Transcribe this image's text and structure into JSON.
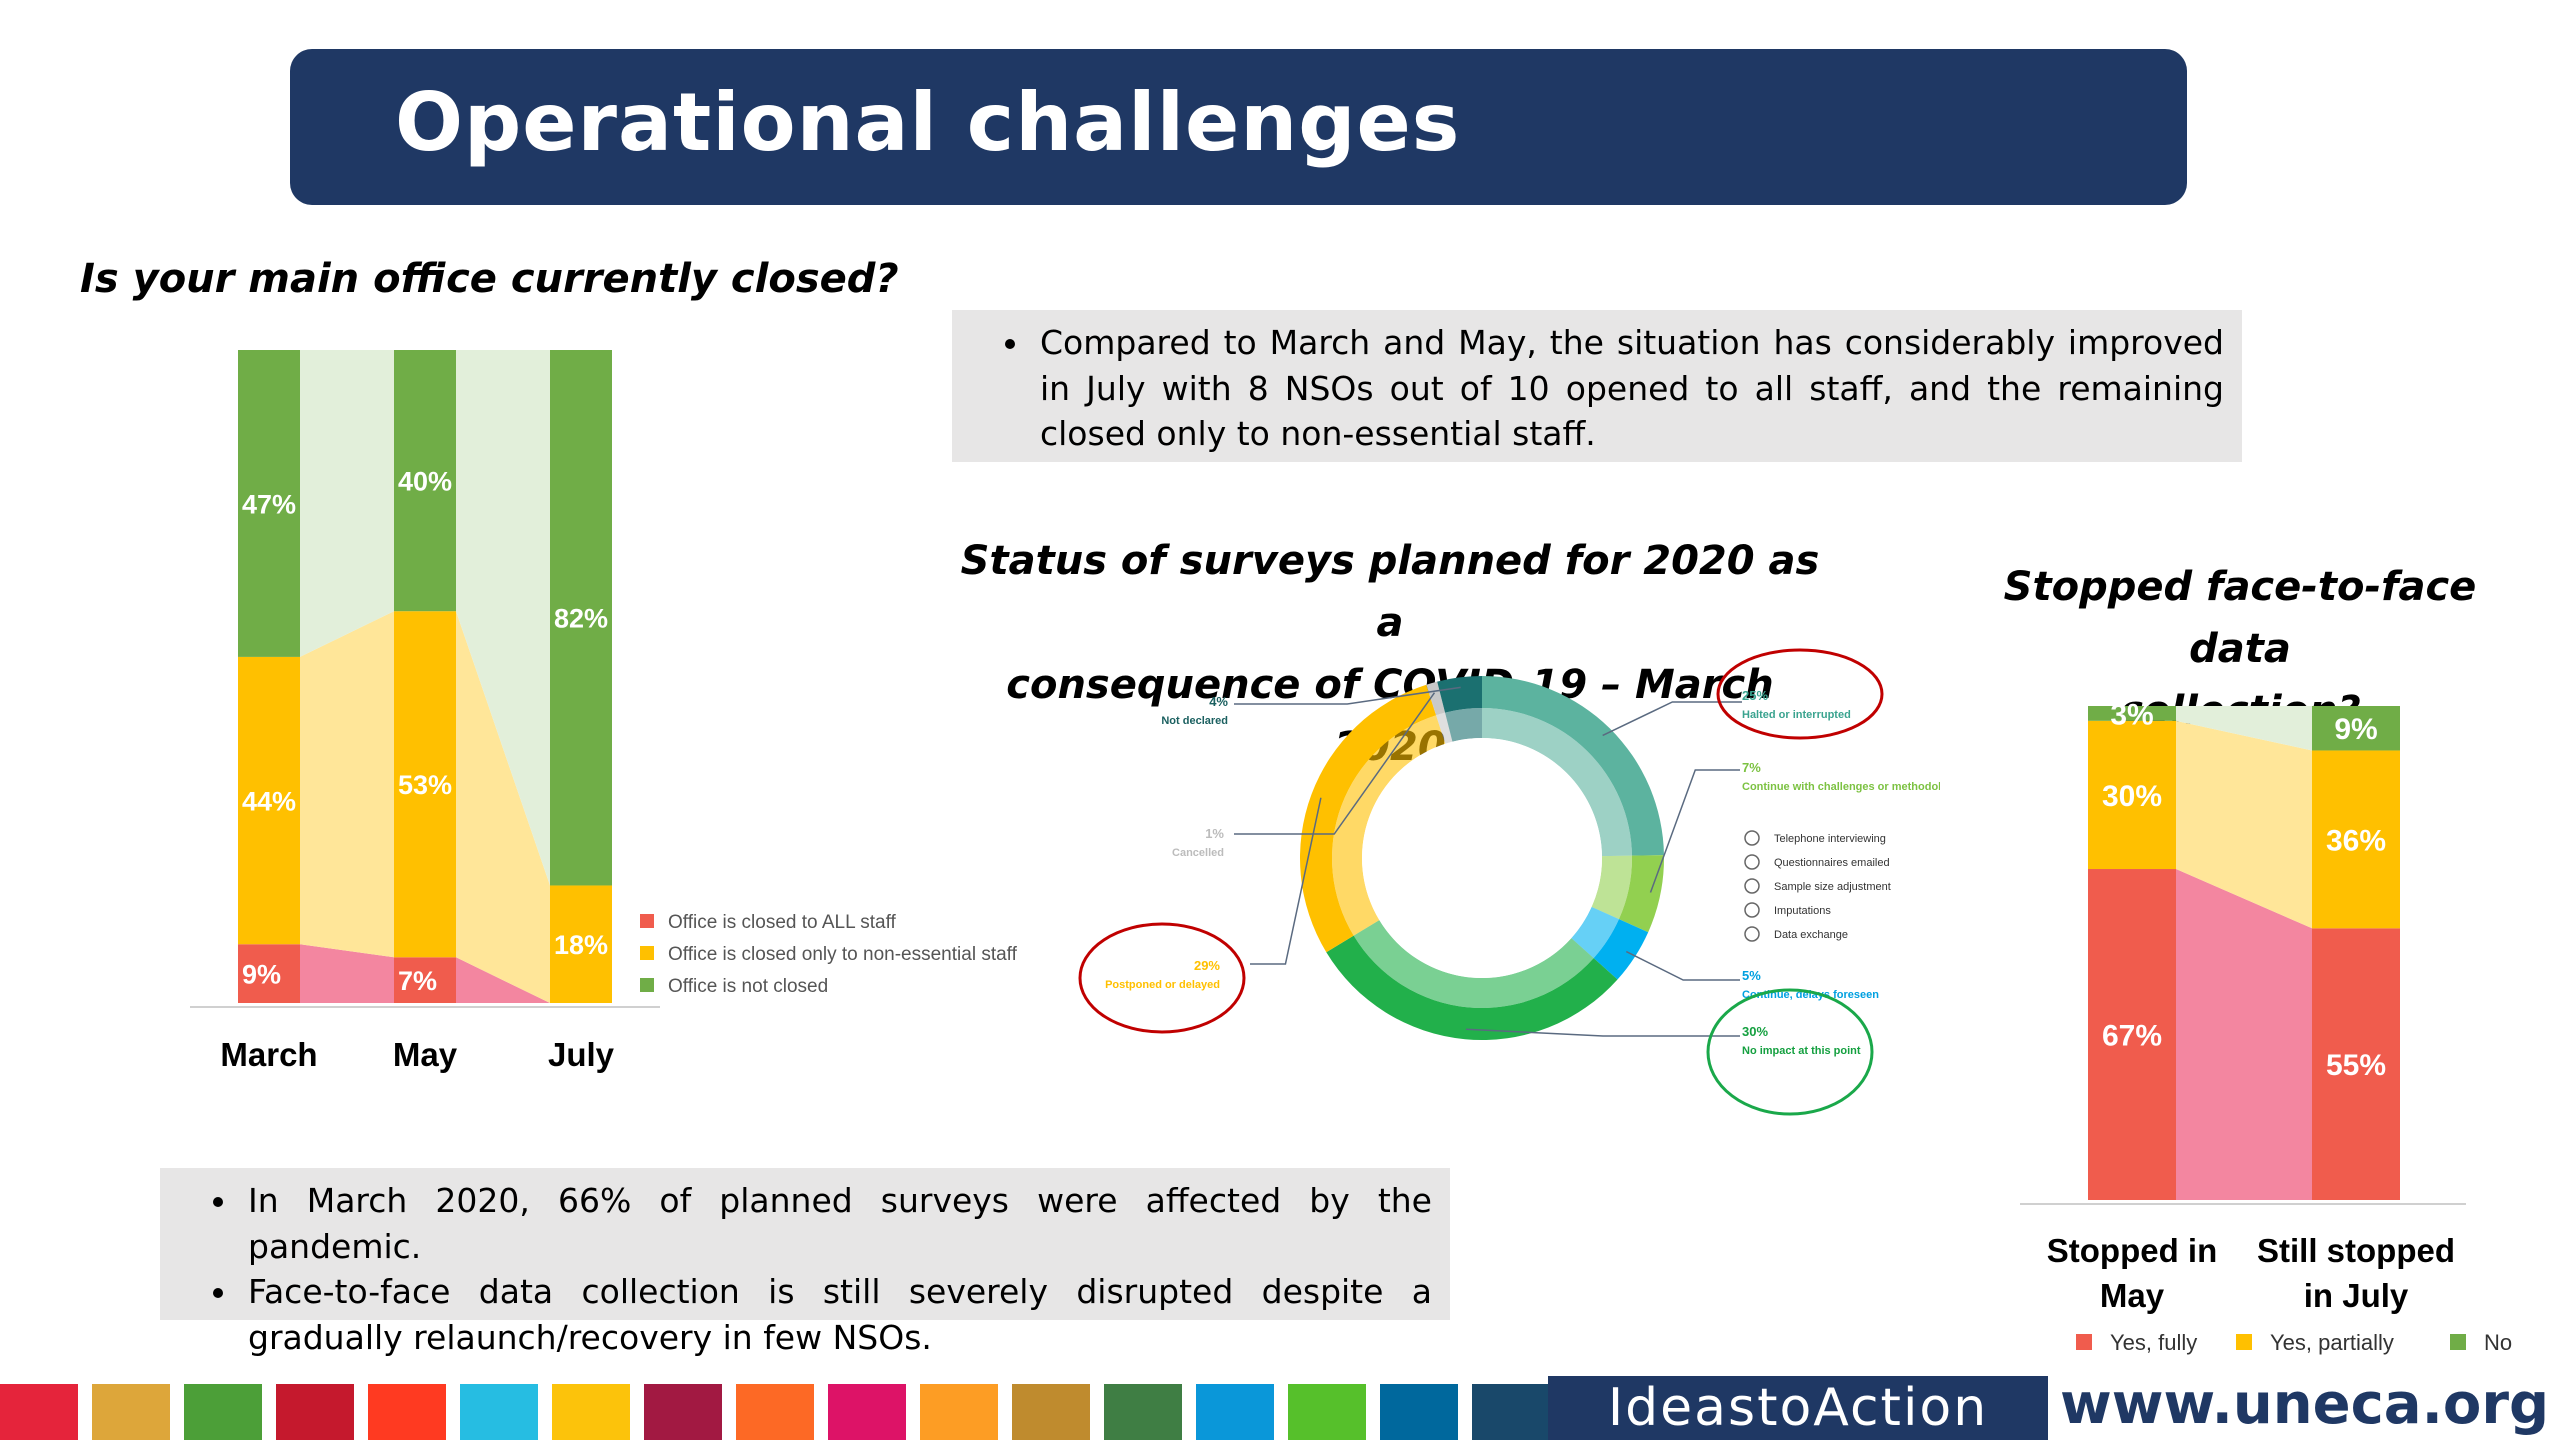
{
  "title": "Operational challenges",
  "office_question": "Is your main office currently closed?",
  "surveys_heading_line1": "Status of surveys planned for 2020 as a",
  "surveys_heading_line2": "consequence of COVID-19 – March 2020",
  "f2f_heading_line1": "Stopped face-to-face data",
  "f2f_heading_line2": "collection?",
  "notes_top": [
    "Compared to March and May, the situation has considerably improved in July with 8 NSOs out of 10 opened to all staff, and the remaining closed only to non-essential staff."
  ],
  "notes_bottom": [
    "In March 2020, 66% of planned surveys were affected by the pandemic.",
    "Face-to-face data collection is still severely disrupted despite a gradually relaunch/recovery in few NSOs."
  ],
  "footer": {
    "ideas": "IdeastoAction",
    "site": "www.uneca.org"
  },
  "colors": {
    "brand": "#1f3864",
    "red": "#f05c4d",
    "yellow": "#ffc000",
    "green": "#70ad47",
    "red_light": "#f386a0",
    "yellow_light": "#ffe699",
    "green_light": "#e2efda"
  },
  "chart_data": [
    {
      "type": "bar",
      "stacked": true,
      "title": "Is your main office currently closed?",
      "categories": [
        "March",
        "May",
        "July"
      ],
      "series": [
        {
          "name": "Office is closed to ALL staff",
          "values": [
            9,
            7,
            0
          ],
          "labels": [
            "9%",
            "7%",
            ""
          ]
        },
        {
          "name": "Office is closed only to non-essential staff",
          "values": [
            44,
            53,
            18
          ],
          "labels": [
            "44%",
            "53%",
            "18%"
          ]
        },
        {
          "name": "Office is not closed",
          "values": [
            47,
            40,
            82
          ],
          "labels": [
            "47%",
            "40%",
            "82%"
          ]
        }
      ],
      "ylim": [
        0,
        100
      ],
      "legend": "right"
    },
    {
      "type": "pie",
      "donut": true,
      "title": "Status of surveys planned for 2020 as a consequence of COVID-19 – March 2020",
      "slices": [
        {
          "label": "Halted or interrupted",
          "value": 25,
          "text": "25%",
          "color": "#5cb39f"
        },
        {
          "label": "Continue with challenges or methodological adjustments",
          "value": 7,
          "text": "7%",
          "color": "#92d050"
        },
        {
          "label": "Continue, delays foreseen",
          "value": 5,
          "text": "5%",
          "color": "#00b0f0"
        },
        {
          "label": "No impact at this point",
          "value": 30,
          "text": "30%",
          "color": "#22b04b"
        },
        {
          "label": "Postponed or delayed",
          "value": 29,
          "text": "29%",
          "color": "#ffc000"
        },
        {
          "label": "Cancelled",
          "value": 1,
          "text": "1%",
          "color": "#c9c9c9"
        },
        {
          "label": "Not declared",
          "value": 4,
          "text": "4%",
          "color": "#1b7070"
        }
      ],
      "sub_items": [
        "Telephone interviewing",
        "Questionnaires emailed",
        "Sample size adjustment",
        "Imputations",
        "Data exchange"
      ]
    },
    {
      "type": "bar",
      "stacked": true,
      "title": "Stopped face-to-face data collection?",
      "categories": [
        "Stopped in May",
        "Still stopped in July"
      ],
      "category_lines": [
        [
          "Stopped in",
          "May"
        ],
        [
          "Still stopped",
          "in July"
        ]
      ],
      "series": [
        {
          "name": "Yes, fully",
          "values": [
            67,
            55
          ],
          "labels": [
            "67%",
            "55%"
          ]
        },
        {
          "name": "Yes, partially",
          "values": [
            30,
            36
          ],
          "labels": [
            "30%",
            "36%"
          ]
        },
        {
          "name": "No",
          "values": [
            3,
            9
          ],
          "labels": [
            "3%",
            "9%"
          ]
        }
      ],
      "ylim": [
        0,
        100
      ],
      "legend": "bottom"
    }
  ]
}
